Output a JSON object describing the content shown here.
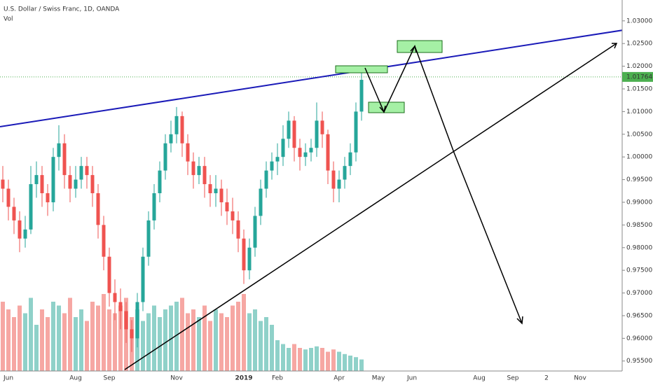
{
  "chart_data": {
    "type": "candlestick",
    "title": "U.S. Dollar / Swiss Franc, 1D, OANDA",
    "categories": [
      null,
      "Jun",
      null,
      null,
      null,
      null,
      null,
      null,
      null,
      null,
      null,
      null,
      null,
      "Aug",
      null,
      null,
      null,
      null,
      null,
      "Sep",
      null,
      null,
      null,
      null,
      null,
      null,
      null,
      null,
      null,
      null,
      null,
      "Nov",
      null,
      null,
      null,
      null,
      null,
      null,
      null,
      null,
      null,
      null,
      null,
      "2019",
      null,
      null,
      null,
      null,
      null,
      "Feb",
      null,
      null,
      null,
      null,
      null,
      null,
      null,
      null,
      null,
      null,
      "Apr",
      null,
      null,
      null,
      null,
      null,
      null,
      "May",
      null,
      null,
      null,
      null,
      null,
      "Jun",
      null,
      null,
      null,
      null,
      null,
      null,
      null,
      null,
      null,
      null,
      null,
      "Aug",
      null,
      null,
      null,
      null,
      null,
      "Sep",
      null,
      null,
      null,
      null,
      null,
      "2",
      null,
      null,
      null,
      null,
      null,
      "Nov",
      null,
      null,
      null,
      null,
      null,
      null,
      null
    ],
    "open": [
      0.995,
      0.993,
      0.989,
      0.986,
      0.982,
      0.984,
      0.994,
      0.996,
      0.992,
      0.99,
      1.0,
      1.003,
      0.996,
      0.993,
      0.995,
      0.998,
      0.996,
      0.992,
      0.985,
      0.978,
      0.97,
      0.968,
      0.966,
      0.962,
      0.96,
      0.968,
      0.978,
      0.986,
      0.992,
      0.997,
      1.003,
      1.005,
      1.009,
      1.003,
      0.999,
      0.996,
      0.998,
      0.994,
      0.992,
      0.993,
      0.99,
      0.988,
      0.986,
      0.982,
      0.975,
      0.98,
      0.987,
      0.993,
      0.997,
      0.999,
      1.0,
      1.004,
      1.008,
      1.002,
      1.0,
      1.001,
      1.002,
      1.008,
      1.005,
      0.997,
      0.993,
      0.995,
      0.998,
      1.001,
      1.01,
      null,
      null,
      null,
      null,
      null,
      null,
      null,
      null,
      null,
      null,
      null,
      null,
      null,
      null,
      null,
      null,
      null,
      null,
      null,
      null,
      null,
      null,
      null,
      null,
      null,
      null,
      null,
      null,
      null,
      null,
      null,
      null,
      null,
      null,
      null,
      null,
      null,
      null,
      null,
      null,
      null,
      null,
      null,
      null,
      null,
      null
    ],
    "high": [
      0.998,
      0.995,
      0.991,
      0.988,
      0.987,
      0.998,
      0.999,
      0.998,
      0.994,
      1.002,
      1.007,
      1.005,
      0.998,
      0.998,
      1.0,
      1.0,
      0.998,
      0.994,
      0.987,
      0.98,
      0.973,
      0.971,
      0.968,
      0.964,
      0.97,
      0.98,
      0.988,
      0.994,
      0.999,
      1.005,
      1.008,
      1.011,
      1.01,
      1.005,
      1.001,
      1.0,
      1.0,
      0.996,
      0.996,
      0.995,
      0.993,
      0.991,
      0.988,
      0.984,
      0.982,
      0.989,
      0.995,
      0.999,
      1.001,
      1.003,
      1.007,
      1.01,
      1.009,
      1.004,
      1.003,
      1.004,
      1.012,
      1.01,
      1.006,
      0.999,
      0.997,
      1.0,
      1.003,
      1.012,
      1.019,
      null,
      null,
      null,
      null,
      null,
      null,
      null,
      null,
      null,
      null,
      null,
      null,
      null,
      null,
      null,
      null,
      null,
      null,
      null,
      null,
      null,
      null,
      null,
      null,
      null,
      null,
      null,
      null,
      null,
      null,
      null,
      null,
      null,
      null,
      null,
      null,
      null,
      null,
      null,
      null,
      null,
      null,
      null,
      null,
      null,
      null
    ],
    "low": [
      0.99,
      0.986,
      0.983,
      0.979,
      0.98,
      0.983,
      0.991,
      0.989,
      0.987,
      0.988,
      0.997,
      0.993,
      0.99,
      0.991,
      0.993,
      0.993,
      0.989,
      0.982,
      0.975,
      0.967,
      0.964,
      0.962,
      0.959,
      0.957,
      0.958,
      0.966,
      0.976,
      0.984,
      0.99,
      0.995,
      1.001,
      1.003,
      1.0,
      0.996,
      0.993,
      0.994,
      0.991,
      0.989,
      0.989,
      0.987,
      0.985,
      0.983,
      0.979,
      0.972,
      0.973,
      0.978,
      0.985,
      0.991,
      0.995,
      0.996,
      0.998,
      1.002,
      0.999,
      0.997,
      0.998,
      0.999,
      1.0,
      1.002,
      0.994,
      0.99,
      0.99,
      0.993,
      0.996,
      0.999,
      1.008,
      null,
      null,
      null,
      null,
      null,
      null,
      null,
      null,
      null,
      null,
      null,
      null,
      null,
      null,
      null,
      null,
      null,
      null,
      null,
      null,
      null,
      null,
      null,
      null,
      null,
      null,
      null,
      null,
      null,
      null,
      null,
      null,
      null,
      null,
      null,
      null,
      null,
      null,
      null,
      null,
      null,
      null,
      null,
      null,
      null,
      null
    ],
    "close": [
      0.993,
      0.989,
      0.986,
      0.982,
      0.984,
      0.994,
      0.996,
      0.992,
      0.99,
      1.0,
      1.003,
      0.996,
      0.993,
      0.995,
      0.998,
      0.996,
      0.992,
      0.985,
      0.978,
      0.97,
      0.968,
      0.966,
      0.962,
      0.96,
      0.968,
      0.978,
      0.986,
      0.992,
      0.997,
      1.003,
      1.005,
      1.009,
      1.003,
      0.999,
      0.996,
      0.998,
      0.994,
      0.992,
      0.993,
      0.99,
      0.988,
      0.986,
      0.982,
      0.975,
      0.98,
      0.987,
      0.993,
      0.997,
      0.999,
      1.0,
      1.004,
      1.008,
      1.002,
      1.0,
      1.001,
      1.002,
      1.008,
      1.005,
      0.997,
      0.993,
      0.995,
      0.998,
      1.001,
      1.01,
      1.017,
      null,
      null,
      null,
      null,
      null,
      null,
      null,
      null,
      null,
      null,
      null,
      null,
      null,
      null,
      null,
      null,
      null,
      null,
      null,
      null,
      null,
      null,
      null,
      null,
      null,
      null,
      null,
      null,
      null,
      null,
      null,
      null,
      null,
      null,
      null,
      null,
      null,
      null,
      null,
      null,
      null,
      null,
      null,
      null,
      null,
      null
    ],
    "volume": {
      "name": "Vol",
      "values": [
        90,
        80,
        70,
        85,
        75,
        95,
        60,
        80,
        70,
        90,
        85,
        75,
        95,
        70,
        80,
        65,
        90,
        85,
        100,
        80,
        75,
        85,
        95,
        70,
        80,
        65,
        75,
        85,
        70,
        80,
        85,
        90,
        95,
        75,
        80,
        70,
        85,
        65,
        80,
        75,
        70,
        85,
        90,
        100,
        75,
        80,
        65,
        70,
        60,
        40,
        35,
        30,
        35,
        30,
        28,
        30,
        32,
        30,
        25,
        28,
        25,
        22,
        20,
        18,
        15,
        null,
        null,
        null,
        null,
        null,
        null,
        null,
        null,
        null,
        null,
        null,
        null,
        null,
        null,
        null,
        null,
        null,
        null,
        null,
        null,
        null,
        null,
        null,
        null,
        null,
        null,
        null,
        null,
        null,
        null,
        null,
        null,
        null,
        null,
        null,
        null,
        null,
        null,
        null,
        null,
        null,
        null,
        null,
        null,
        null,
        null
      ]
    },
    "up_color": "#26a69a",
    "down_color": "#ef5350",
    "volume_up_color": "#8fd1c9",
    "volume_down_color": "#f6a7a3",
    "last_price": 1.01764,
    "last_price_color": "#4caf50",
    "ylim": [
      0.9528,
      1.0346
    ],
    "yticks": [
      {
        "value": 0.955,
        "label": "0.95500"
      },
      {
        "value": 0.96,
        "label": "0.96000"
      },
      {
        "value": 0.965,
        "label": "0.96500"
      },
      {
        "value": 0.97,
        "label": "0.97000"
      },
      {
        "value": 0.975,
        "label": "0.97500"
      },
      {
        "value": 0.98,
        "label": "0.98000"
      },
      {
        "value": 0.985,
        "label": "0.98500"
      },
      {
        "value": 0.99,
        "label": "0.99000"
      },
      {
        "value": 0.995,
        "label": "0.99500"
      },
      {
        "value": 1.0,
        "label": "1.00000"
      },
      {
        "value": 1.005,
        "label": "1.00500"
      },
      {
        "value": 1.01,
        "label": "1.01000"
      },
      {
        "value": 1.015,
        "label": "1.01500"
      },
      {
        "value": 1.02,
        "label": "1.02000"
      },
      {
        "value": 1.025,
        "label": "1.02500"
      },
      {
        "value": 1.03,
        "label": "1.03000"
      }
    ],
    "grid": false
  }
}
